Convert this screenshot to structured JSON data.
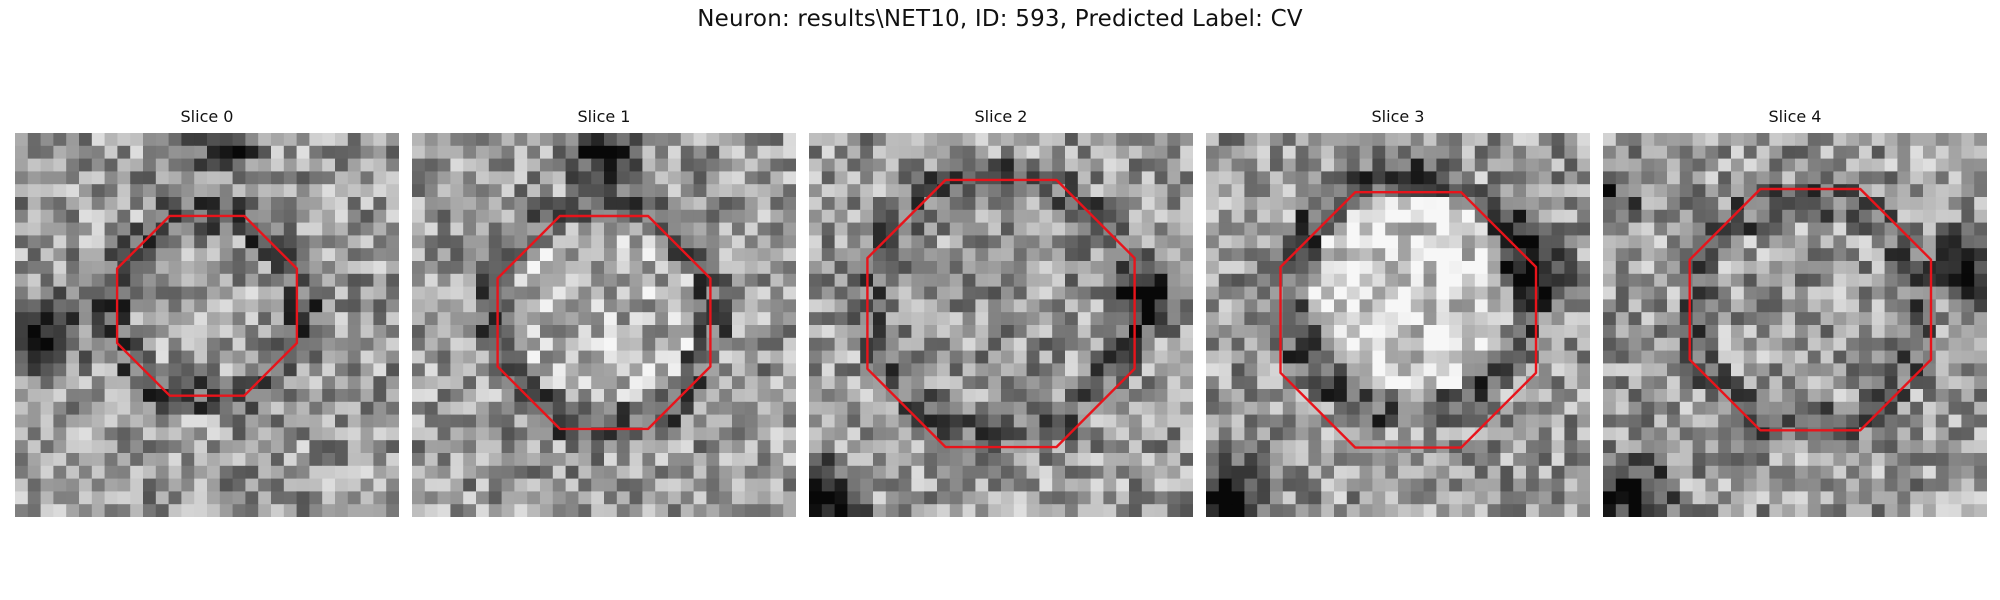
{
  "figure": {
    "title": "Neuron: results\\NET10, ID: 593, Predicted Label: CV"
  },
  "panels": [
    {
      "title": "Slice 0"
    },
    {
      "title": "Slice 1"
    },
    {
      "title": "Slice 2"
    },
    {
      "title": "Slice 3"
    },
    {
      "title": "Slice 4"
    }
  ],
  "colors": {
    "contour": "#e8141b"
  }
}
